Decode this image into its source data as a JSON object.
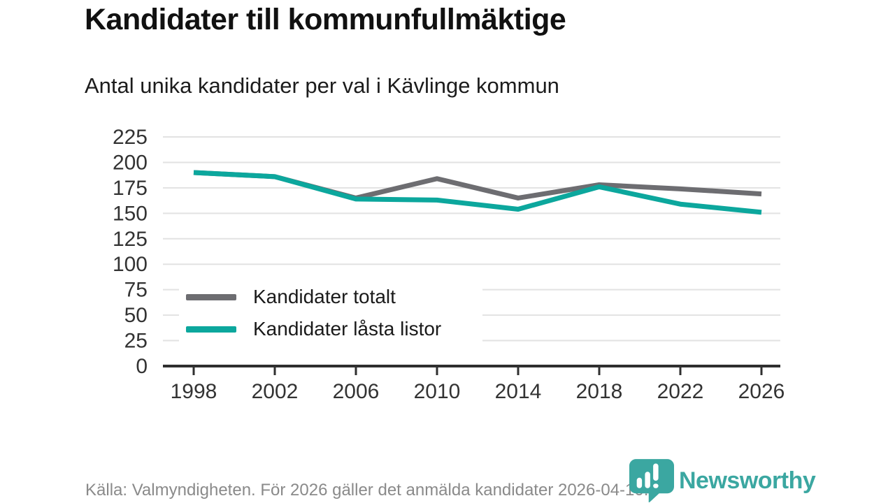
{
  "header": {
    "title": "Kandidater till kommunfullmäktige",
    "subtitle": "Antal unika kandidater per val i Kävlinge kommun"
  },
  "chart_data": {
    "type": "line",
    "x_categories": [
      "1998",
      "2002",
      "2006",
      "2010",
      "2014",
      "2018",
      "2022",
      "2026"
    ],
    "series": [
      {
        "name": "Kandidater totalt",
        "color": "#6d6d71",
        "values": [
          190,
          186,
          165,
          184,
          165,
          178,
          174,
          169
        ]
      },
      {
        "name": "Kandidater låsta listor",
        "color": "#0ca79d",
        "values": [
          190,
          186,
          164,
          163,
          154,
          176,
          159,
          151
        ]
      }
    ],
    "title": "Kandidater till kommunfullmäktige",
    "subtitle": "Antal unika kandidater per val i Kävlinge kommun",
    "xlabel": "",
    "ylabel": "",
    "ylim": [
      0,
      225
    ],
    "yticks": [
      0,
      25,
      50,
      75,
      100,
      125,
      150,
      175,
      200,
      225
    ],
    "grid": true,
    "legend_position": "inside-lower-left",
    "colors": {
      "axis": "#2f2f2f",
      "gridline": "#e2e2e2",
      "tick_labels": "#333333"
    }
  },
  "footer": {
    "source": "Källa: Valmyndigheten. För 2026 gäller det anmälda kandidater 2026-04-10."
  },
  "branding": {
    "wordmark": "Newsworthy",
    "color": "#3ba7a1",
    "icon": "newsworthy-bubble-barchart-icon"
  }
}
